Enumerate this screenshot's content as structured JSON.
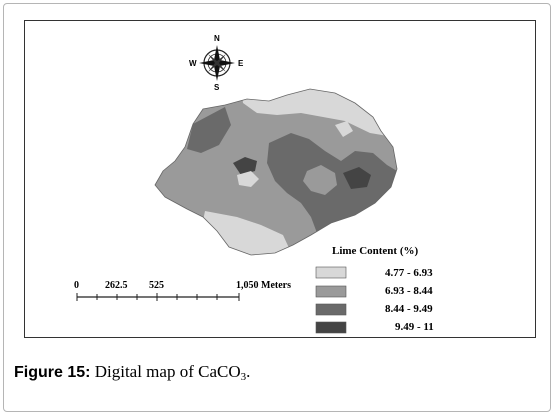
{
  "legend": {
    "title": "Lime Content (%)",
    "classes": [
      {
        "range": "4.77 - 6.93",
        "color": "#d8d8d8"
      },
      {
        "range": "6.93 - 8.44",
        "color": "#9a9a9a"
      },
      {
        "range": "8.44 - 9.49",
        "color": "#6a6a6a"
      },
      {
        "range": "9.49 - 11",
        "color": "#444444"
      }
    ]
  },
  "scale_bar": {
    "ticks": [
      "0",
      "262.5",
      "525",
      "1,050 Meters"
    ]
  },
  "compass": {
    "n": "N",
    "s": "S",
    "e": "E",
    "w": "W"
  },
  "caption": {
    "label": "Figure 15:",
    "text": "Digital map of CaCO",
    "subscript": "3",
    "tail": "."
  }
}
